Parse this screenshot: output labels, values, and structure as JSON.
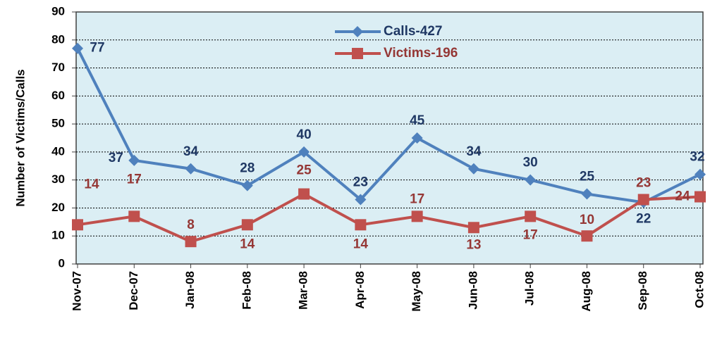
{
  "chart_data": {
    "type": "line",
    "y_label": "Number of Victims/Calls",
    "categories": [
      "Nov-07",
      "Dec-07",
      "Jan-08",
      "Feb-08",
      "Mar-08",
      "Apr-08",
      "May-08",
      "Jun-08",
      "Jul-08",
      "Aug-08",
      "Sep-08",
      "Oct-08"
    ],
    "series": [
      {
        "name": "Calls-427",
        "color": "#4f81bd",
        "label_color": "#1f3864",
        "marker": "diamond",
        "values": [
          77,
          37,
          34,
          28,
          40,
          23,
          45,
          34,
          30,
          25,
          22,
          32
        ]
      },
      {
        "name": "Victims-196",
        "color": "#c0504d",
        "label_color": "#953735",
        "marker": "square",
        "values": [
          14,
          17,
          8,
          14,
          25,
          14,
          17,
          13,
          17,
          10,
          23,
          24
        ]
      }
    ],
    "ylim": [
      0,
      90
    ],
    "yticks": [
      0,
      10,
      20,
      30,
      40,
      50,
      60,
      70,
      80,
      90
    ],
    "grid": true
  }
}
